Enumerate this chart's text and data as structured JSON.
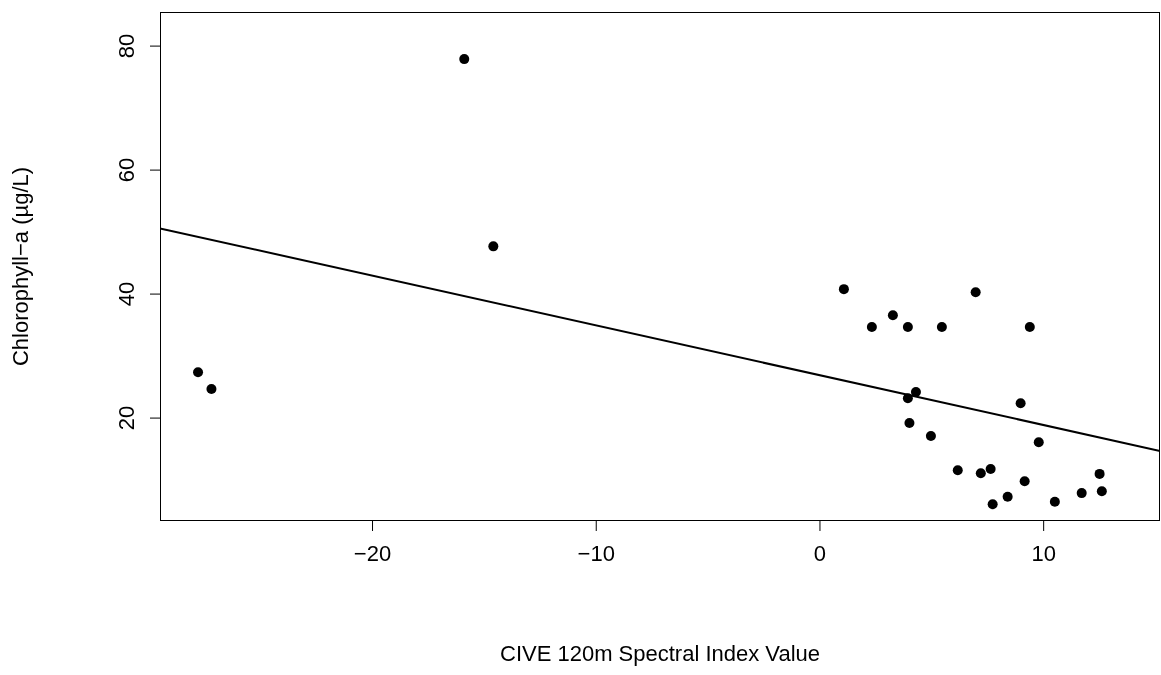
{
  "chart_data": {
    "type": "scatter",
    "xlabel": "CIVE 120m Spectral Index Value",
    "ylabel": "Chlorophyll−a (µg/L)",
    "xlim": [
      -29.5,
      15.2
    ],
    "ylim": [
      3.4,
      85.5
    ],
    "xticks": [
      {
        "value": -20,
        "label": "−20"
      },
      {
        "value": -10,
        "label": "−10"
      },
      0,
      10
    ],
    "yticks": [
      20,
      40,
      60,
      80
    ],
    "grid": false,
    "series": [
      {
        "marker": "circle",
        "color": "#000000",
        "x": [
          -27.8,
          -27.2,
          -15.9,
          -14.6,
          1.07,
          2.32,
          3.26,
          3.93,
          5.45,
          6.96,
          9.38,
          4.29,
          3.93,
          4.0,
          4.96,
          8.97,
          9.78,
          6.16,
          7.19,
          7.63,
          7.72,
          8.39,
          9.15,
          10.5,
          11.7,
          12.5,
          12.6
        ],
        "values": [
          27.4,
          24.7,
          77.9,
          47.7,
          40.8,
          34.7,
          36.6,
          34.7,
          34.7,
          40.3,
          34.7,
          24.2,
          23.2,
          19.2,
          17.1,
          22.4,
          16.1,
          11.6,
          11.1,
          11.8,
          6.1,
          7.3,
          9.8,
          6.5,
          7.9,
          11.0,
          8.2
        ]
      },
      {
        "type": "line",
        "color": "#000000",
        "x": [
          -29.5,
          15.2
        ],
        "values": [
          50.6,
          14.7
        ]
      }
    ]
  }
}
